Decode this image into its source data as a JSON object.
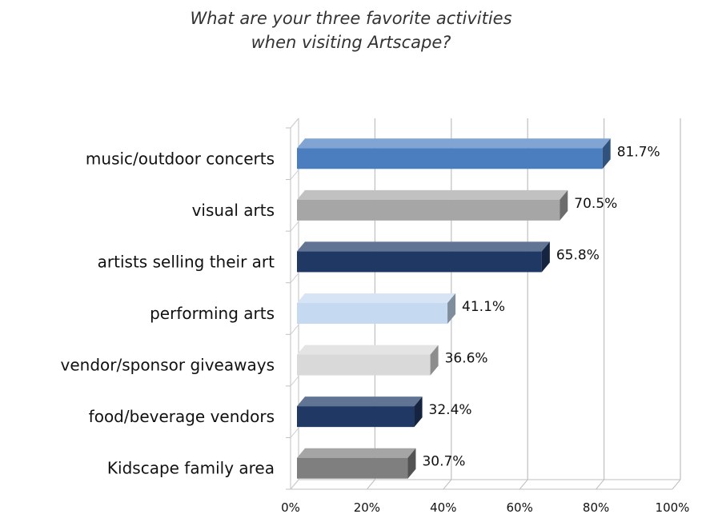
{
  "chart_data": {
    "type": "bar",
    "orientation": "horizontal",
    "title_lines": [
      "What are your three favorite activities",
      "when visiting Artscape?"
    ],
    "categories": [
      "music/outdoor concerts",
      "visual arts",
      "artists selling their art",
      "performing arts",
      "vendor/sponsor giveaways",
      "food/beverage vendors",
      "Kidscape family area"
    ],
    "values": [
      81.7,
      70.5,
      65.8,
      41.1,
      36.6,
      32.4,
      30.7
    ],
    "value_labels": [
      "81.7%",
      "70.5%",
      "65.8%",
      "41.1%",
      "36.6%",
      "32.4%",
      "30.7%"
    ],
    "bar_colors": [
      "#4a7ebf",
      "#a6a6a6",
      "#1f3864",
      "#c5d9f1",
      "#d9d9d9",
      "#1f3864",
      "#7f7f7f"
    ],
    "x_ticks": [
      "0%",
      "20%",
      "40%",
      "60%",
      "80%",
      "100%"
    ],
    "xlim": [
      0,
      100
    ],
    "gridlines": true,
    "style": "3d-bar"
  }
}
